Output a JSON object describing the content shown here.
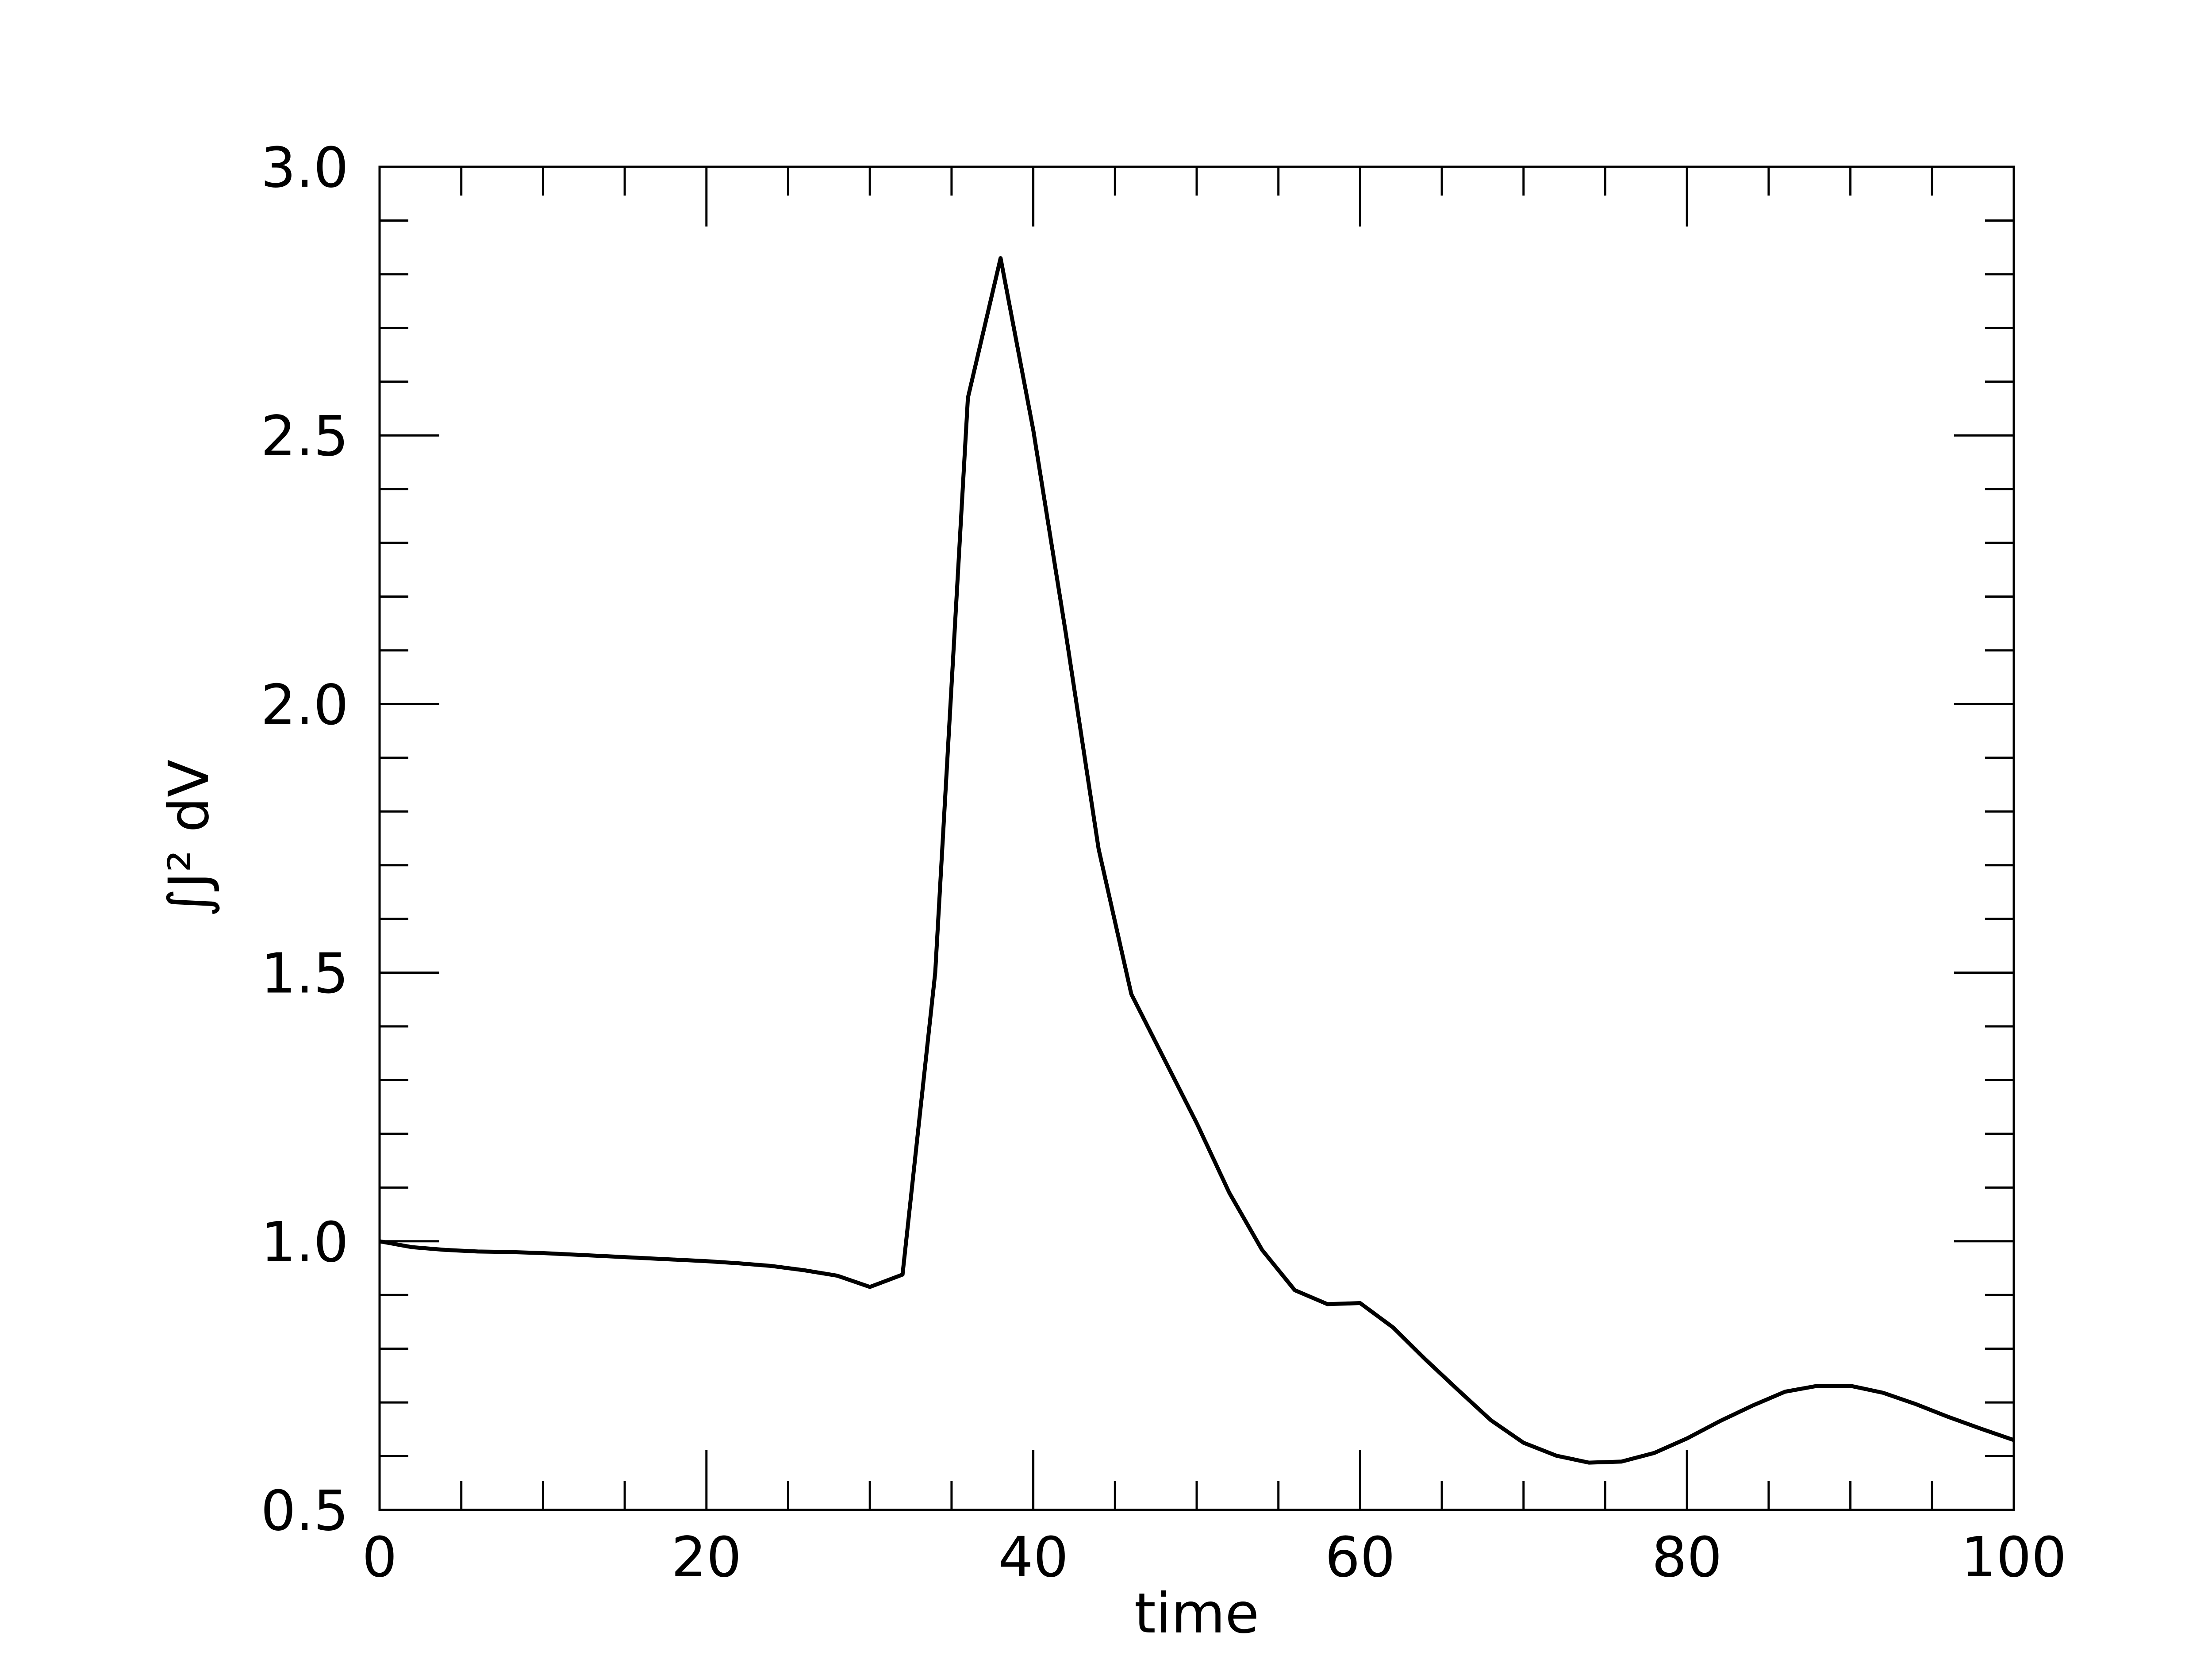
{
  "chart_data": {
    "type": "line",
    "xlabel": "time",
    "ylabel": "∫J² dV",
    "x": [
      0,
      2,
      4,
      6,
      8,
      10,
      12,
      14,
      16,
      18,
      20,
      22,
      24,
      26,
      28,
      30,
      32,
      34,
      36,
      38,
      40,
      42,
      44,
      46,
      48,
      50,
      52,
      54,
      56,
      58,
      60,
      62,
      64,
      66,
      68,
      70,
      72,
      74,
      76,
      78,
      80,
      82,
      84,
      86,
      88,
      90,
      92,
      94,
      96,
      98,
      100
    ],
    "series": [
      {
        "color": "#000000",
        "values": [
          1.0,
          0.989,
          0.984,
          0.981,
          0.98,
          0.978,
          0.975,
          0.972,
          0.969,
          0.966,
          0.963,
          0.959,
          0.954,
          0.946,
          0.936,
          0.915,
          0.938,
          1.5,
          2.57,
          2.83,
          2.51,
          2.13,
          1.73,
          1.46,
          1.34,
          1.22,
          1.09,
          0.984,
          0.909,
          0.883,
          0.885,
          0.84,
          0.78,
          0.723,
          0.667,
          0.625,
          0.601,
          0.588,
          0.59,
          0.606,
          0.633,
          0.665,
          0.694,
          0.72,
          0.731,
          0.731,
          0.718,
          0.697,
          0.673,
          0.651,
          0.63
        ]
      }
    ],
    "xlim": [
      0,
      100
    ],
    "ylim": [
      0.5,
      3.0
    ],
    "xticks": [
      0,
      20,
      40,
      60,
      80,
      100
    ],
    "yticks": [
      0.5,
      {
        "value": 1,
        "label": "1.0"
      },
      1.5,
      {
        "value": 2,
        "label": "2.0"
      },
      2.5,
      {
        "value": 3,
        "label": "3.0"
      }
    ],
    "xticks_minor": [
      5,
      10,
      15,
      25,
      30,
      35,
      45,
      50,
      55,
      65,
      70,
      75,
      85,
      90,
      95
    ],
    "yticks_minor": [
      0.6,
      0.7,
      0.8,
      0.9,
      1.1,
      1.2,
      1.3,
      1.4,
      1.6,
      1.7,
      1.8,
      1.9,
      2.1,
      2.2,
      2.3,
      2.4,
      2.6,
      2.7,
      2.8,
      2.9
    ],
    "grid": false
  }
}
